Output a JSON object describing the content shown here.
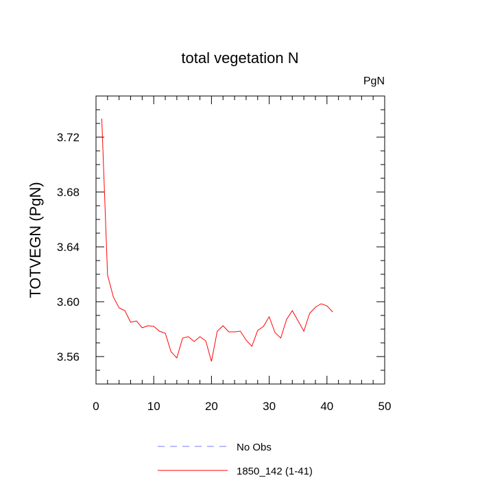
{
  "chart_data": {
    "type": "line",
    "title": "total vegetation N",
    "units_label": "PgN",
    "xlabel": "",
    "ylabel": "TOTVEGN  (PgN)",
    "xlim": [
      0,
      50
    ],
    "ylim": [
      3.54,
      3.75
    ],
    "xticks": [
      0,
      10,
      20,
      30,
      40,
      50
    ],
    "yticks": [
      3.56,
      3.6,
      3.64,
      3.68,
      3.72
    ],
    "ytick_labels": [
      "3.56",
      "3.60",
      "3.64",
      "3.68",
      "3.72"
    ],
    "xtick_labels": [
      "0",
      "10",
      "20",
      "30",
      "40",
      "50"
    ],
    "colors": {
      "series": "#ff0000",
      "obs": "#7777ff",
      "axis": "#000000"
    },
    "series": [
      {
        "name": "1850_142 (1-41)",
        "color": "#ff0000",
        "x": [
          1,
          2,
          3,
          4,
          5,
          6,
          7,
          8,
          9,
          10,
          11,
          12,
          13,
          14,
          15,
          16,
          17,
          18,
          19,
          20,
          21,
          22,
          23,
          24,
          25,
          26,
          27,
          28,
          29,
          30,
          31,
          32,
          33,
          34,
          35,
          36,
          37,
          38,
          39,
          40,
          41
        ],
        "values": [
          3.7335,
          3.6195,
          3.6035,
          3.5955,
          3.5935,
          3.585,
          3.586,
          3.581,
          3.5825,
          3.582,
          3.5785,
          3.577,
          3.5635,
          3.559,
          3.5735,
          3.5745,
          3.571,
          3.5745,
          3.5715,
          3.5565,
          3.5785,
          3.5825,
          3.578,
          3.578,
          3.5785,
          3.572,
          3.5675,
          3.579,
          3.582,
          3.589,
          3.5775,
          3.5735,
          3.587,
          3.5935,
          3.586,
          3.5785,
          3.5915,
          3.596,
          3.5985,
          3.597,
          3.5925
        ]
      }
    ],
    "legend": [
      {
        "label": "No Obs",
        "style": "dashed",
        "color": "#7777ff"
      },
      {
        "label": "1850_142 (1-41)",
        "style": "solid",
        "color": "#ff0000"
      }
    ],
    "legend_position": "bottom-center"
  }
}
